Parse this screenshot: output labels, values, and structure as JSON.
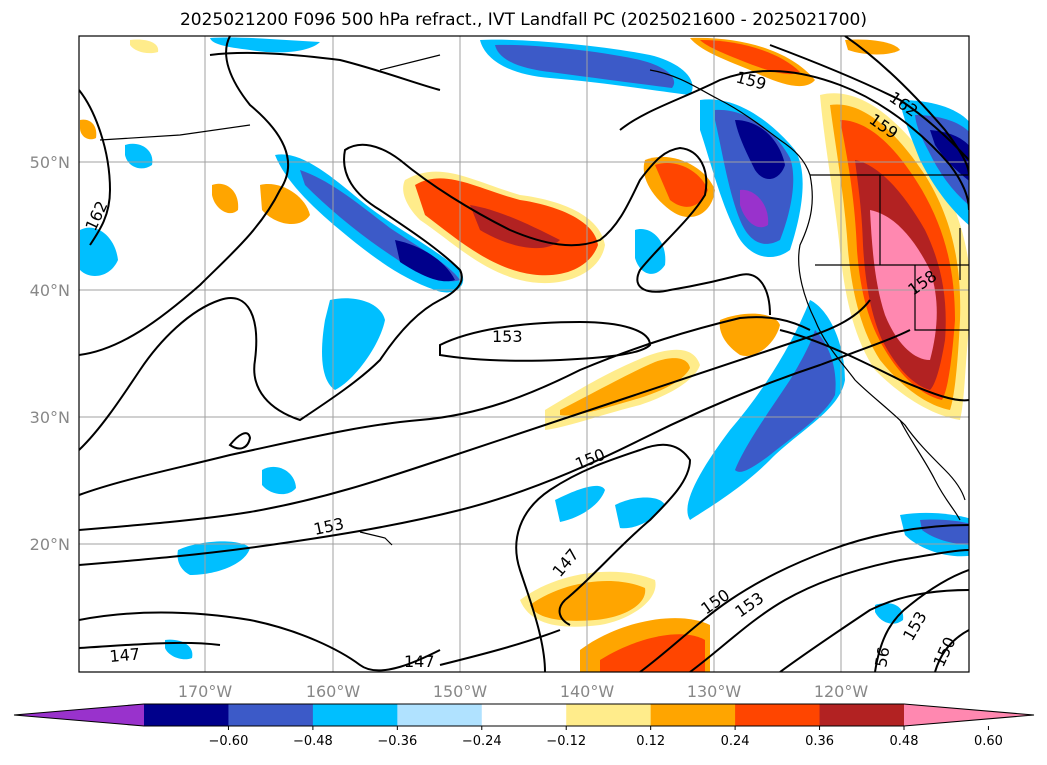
{
  "title": "2025021200 F096 500 hPa refract., IVT Landfall PC (2025021600 - 2025021700)",
  "map": {
    "lon_labels": [
      "170°W",
      "160°W",
      "150°W",
      "140°W",
      "130°W",
      "120°W"
    ],
    "lat_labels": [
      "50°N",
      "40°N",
      "30°N",
      "20°N"
    ],
    "contour_labels": [
      "159",
      "162",
      "159",
      "162",
      "158",
      "153",
      "150",
      "153",
      "147",
      "150",
      "153",
      "147",
      "147",
      "153",
      "150",
      "56"
    ]
  },
  "colorbar": {
    "colors": [
      "#9932cc",
      "#00008b",
      "#3c5ac8",
      "#00bfff",
      "#b0e2ff",
      "#ffffff",
      "#ffec8b",
      "#ffa500",
      "#ff4500",
      "#b22222",
      "#ff88b0"
    ],
    "ticks": [
      "−0.60",
      "−0.48",
      "−0.36",
      "−0.24",
      "−0.12",
      "0.12",
      "0.24",
      "0.36",
      "0.48",
      "0.60"
    ]
  }
}
